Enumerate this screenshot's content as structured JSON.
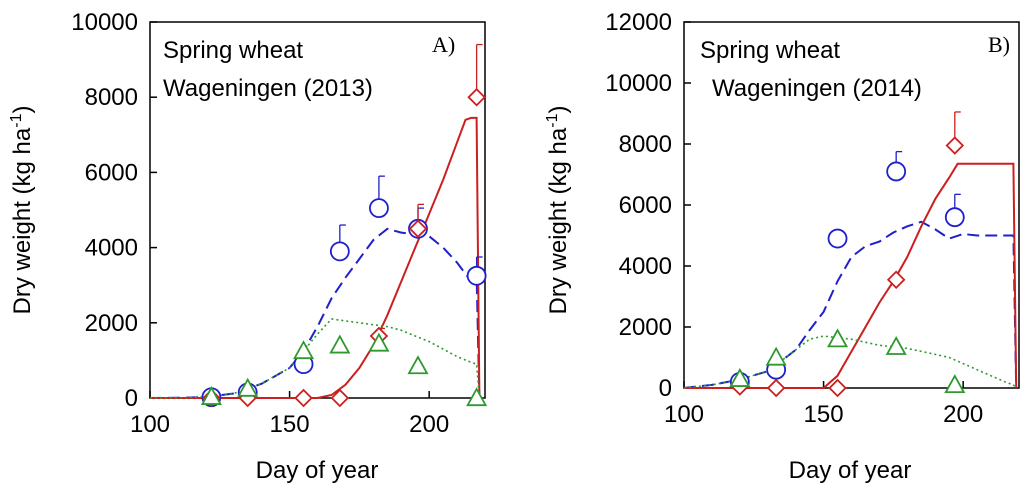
{
  "chart_data": [
    {
      "type": "line",
      "panel_label": "A)",
      "title_lines": [
        "Spring wheat",
        "Wageningen (2013)"
      ],
      "xlabel": "Day of year",
      "ylabel": "Dry weight (kg ha",
      "ylabel_sup": "-1",
      "ylabel_tail": ")",
      "xlim": [
        100,
        220
      ],
      "ylim": [
        0,
        10000
      ],
      "xticks": [
        100,
        150,
        200
      ],
      "yticks": [
        0,
        2000,
        4000,
        6000,
        8000,
        10000
      ],
      "grid": false,
      "colors": {
        "blue": "#1f1fcc",
        "red": "#cc1f1f",
        "green": "#2e9a2e"
      },
      "series": [
        {
          "color": "blue",
          "style": "dashed",
          "x": [
            100,
            110,
            120,
            130,
            140,
            150,
            155,
            160,
            165,
            170,
            175,
            180,
            185,
            190,
            195,
            200,
            205,
            210,
            214,
            215,
            217,
            218
          ],
          "y": [
            0,
            5,
            25,
            120,
            380,
            800,
            1250,
            1900,
            2650,
            3200,
            3700,
            4200,
            4500,
            4400,
            4350,
            4300,
            4000,
            3600,
            3200,
            3250,
            3250,
            0
          ]
        },
        {
          "color": "red",
          "style": "solid",
          "x": [
            100,
            160,
            165,
            170,
            175,
            180,
            185,
            190,
            195,
            200,
            205,
            210,
            213,
            215,
            217,
            218
          ],
          "y": [
            0,
            0,
            80,
            350,
            800,
            1400,
            2200,
            3100,
            4000,
            4900,
            5800,
            6800,
            7400,
            7450,
            7450,
            0
          ]
        },
        {
          "color": "green",
          "style": "dotted",
          "x": [
            100,
            110,
            120,
            130,
            140,
            150,
            155,
            160,
            165,
            170,
            175,
            180,
            185,
            190,
            195,
            200,
            205,
            210,
            215,
            217,
            218
          ],
          "y": [
            0,
            5,
            25,
            120,
            380,
            800,
            1250,
            1700,
            2100,
            2050,
            2000,
            1950,
            1900,
            1800,
            1650,
            1500,
            1300,
            1100,
            950,
            900,
            0
          ]
        }
      ],
      "observations": [
        {
          "color": "blue",
          "marker": "circle",
          "x": [
            122,
            135,
            155,
            168,
            182,
            196,
            217
          ],
          "y": [
            20,
            150,
            900,
            3900,
            5050,
            4500,
            3250
          ],
          "err": [
            0,
            0,
            0,
            700,
            850,
            550,
            500
          ]
        },
        {
          "color": "red",
          "marker": "diamond",
          "x": [
            122,
            135,
            155,
            168,
            182,
            196,
            217
          ],
          "y": [
            0,
            0,
            0,
            0,
            1650,
            4500,
            8000
          ],
          "err": [
            0,
            0,
            0,
            0,
            200,
            650,
            1400
          ]
        },
        {
          "color": "green",
          "marker": "triangle",
          "x": [
            122,
            135,
            155,
            168,
            182,
            196,
            217
          ],
          "y": [
            30,
            250,
            1250,
            1400,
            1450,
            850,
            0
          ],
          "err": [
            0,
            0,
            0,
            0,
            0,
            0,
            0
          ]
        }
      ]
    },
    {
      "type": "line",
      "panel_label": "B)",
      "title_lines": [
        "Spring wheat",
        "Wageningen (2014)"
      ],
      "xlabel": "Day of year",
      "ylabel": "Dry weight (kg ha",
      "ylabel_sup": "-1",
      "ylabel_tail": ")",
      "xlim": [
        100,
        220
      ],
      "ylim": [
        0,
        12000
      ],
      "xticks": [
        100,
        150,
        200
      ],
      "yticks": [
        0,
        2000,
        4000,
        6000,
        8000,
        10000,
        12000
      ],
      "grid": false,
      "colors": {
        "blue": "#1f1fcc",
        "red": "#cc1f1f",
        "green": "#2e9a2e"
      },
      "series": [
        {
          "color": "blue",
          "style": "dashed",
          "x": [
            100,
            110,
            120,
            130,
            140,
            145,
            150,
            155,
            160,
            165,
            170,
            175,
            180,
            185,
            190,
            195,
            200,
            205,
            210,
            215,
            218,
            219
          ],
          "y": [
            0,
            100,
            280,
            550,
            1250,
            1900,
            2500,
            3500,
            4300,
            4650,
            4800,
            5100,
            5300,
            5450,
            5200,
            4900,
            5050,
            5000,
            5000,
            5000,
            5000,
            0
          ]
        },
        {
          "color": "red",
          "style": "solid",
          "x": [
            100,
            150,
            155,
            160,
            165,
            170,
            175,
            180,
            185,
            190,
            195,
            198,
            205,
            210,
            215,
            218,
            219
          ],
          "y": [
            0,
            0,
            400,
            1200,
            2000,
            2800,
            3500,
            4300,
            5300,
            6200,
            6900,
            7350,
            7350,
            7350,
            7350,
            7350,
            0
          ]
        },
        {
          "color": "green",
          "style": "dotted",
          "x": [
            100,
            110,
            120,
            130,
            140,
            145,
            150,
            155,
            160,
            165,
            170,
            175,
            180,
            185,
            190,
            195,
            200,
            205,
            210,
            215,
            218,
            219
          ],
          "y": [
            0,
            100,
            280,
            550,
            1250,
            1600,
            1700,
            1650,
            1600,
            1500,
            1400,
            1350,
            1300,
            1200,
            1100,
            1000,
            800,
            600,
            400,
            200,
            100,
            0
          ]
        }
      ],
      "observations": [
        {
          "color": "blue",
          "marker": "circle",
          "x": [
            120,
            133,
            155,
            176,
            197
          ],
          "y": [
            200,
            600,
            4900,
            7100,
            5600
          ],
          "err": [
            0,
            0,
            200,
            650,
            750
          ]
        },
        {
          "color": "red",
          "marker": "diamond",
          "x": [
            120,
            133,
            155,
            176,
            197
          ],
          "y": [
            50,
            0,
            0,
            3550,
            7950
          ],
          "err": [
            0,
            0,
            0,
            0,
            1100
          ]
        },
        {
          "color": "green",
          "marker": "triangle",
          "x": [
            120,
            133,
            155,
            176,
            197
          ],
          "y": [
            300,
            1000,
            1600,
            1350,
            100
          ],
          "err": [
            0,
            0,
            0,
            0,
            0
          ]
        }
      ]
    }
  ]
}
